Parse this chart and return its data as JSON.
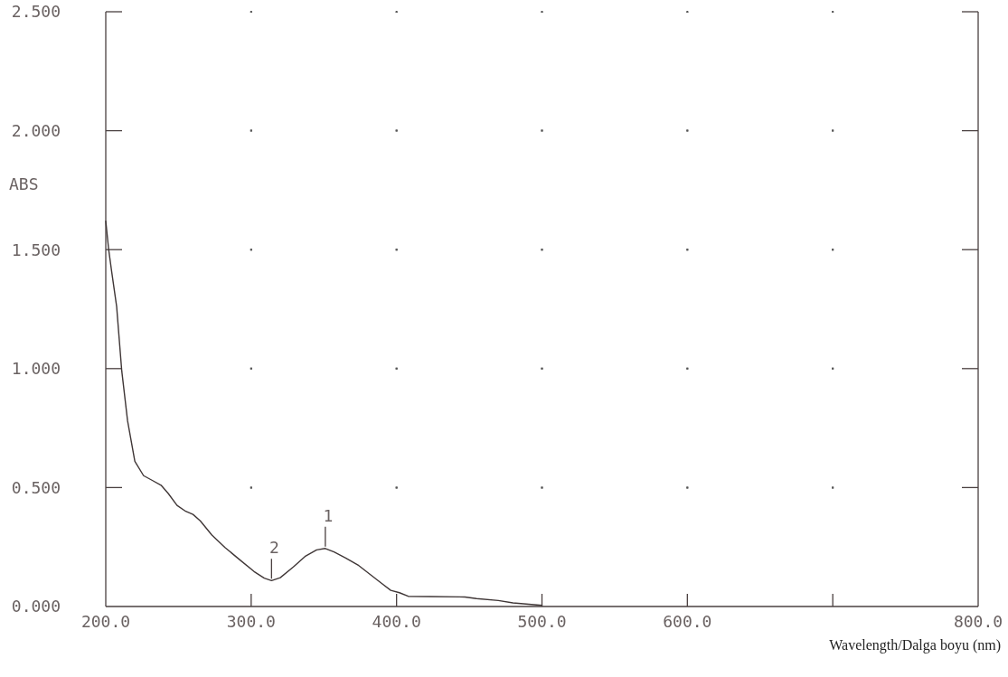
{
  "chart_data": {
    "type": "line",
    "xlabel": "Wavelength/Dalga boyu (nm)",
    "ylabel": "ABS",
    "xlim": [
      200,
      800
    ],
    "ylim": [
      0,
      2.5
    ],
    "xticks": [
      {
        "value": 200,
        "label": "200.0"
      },
      {
        "value": 300,
        "label": "300.0"
      },
      {
        "value": 400,
        "label": "400.0"
      },
      {
        "value": 500,
        "label": "500.0"
      },
      {
        "value": 600,
        "label": "600.0"
      },
      {
        "value": 700,
        "label": null
      },
      {
        "value": 800,
        "label": "800.0"
      }
    ],
    "yticks": [
      {
        "value": 0,
        "label": "0.000"
      },
      {
        "value": 0.5,
        "label": "0.500"
      },
      {
        "value": 1,
        "label": "1.000"
      },
      {
        "value": 1.5,
        "label": "1.500"
      },
      {
        "value": 2,
        "label": "2.000"
      },
      {
        "value": 2.5,
        "label": "2.500"
      }
    ],
    "grid": true,
    "x": [
      200,
      202,
      204,
      207.5,
      208,
      211,
      215,
      220,
      226,
      232,
      238,
      243,
      249,
      255,
      260,
      265,
      273,
      282,
      292,
      302,
      309,
      314,
      320,
      329,
      337,
      345,
      351,
      357,
      365,
      374,
      382,
      390,
      396,
      402,
      408,
      423,
      447,
      455,
      470,
      480,
      500
    ],
    "series": [
      {
        "color": "#3f3636",
        "values": [
          1.62,
          1.5,
          1.41,
          1.26,
          1.22,
          0.99,
          0.78,
          0.61,
          0.55,
          0.53,
          0.51,
          0.475,
          0.425,
          0.4,
          0.387,
          0.36,
          0.3,
          0.248,
          0.197,
          0.147,
          0.119,
          0.109,
          0.121,
          0.166,
          0.21,
          0.238,
          0.244,
          0.229,
          0.204,
          0.172,
          0.134,
          0.096,
          0.068,
          0.058,
          0.043,
          0.042,
          0.04,
          0.033,
          0.025,
          0.015,
          0.005
        ]
      }
    ],
    "annotations": [
      {
        "text": "1",
        "x": 351,
        "y": 0.244
      },
      {
        "text": "2",
        "x": 314,
        "y": 0.109
      }
    ]
  }
}
